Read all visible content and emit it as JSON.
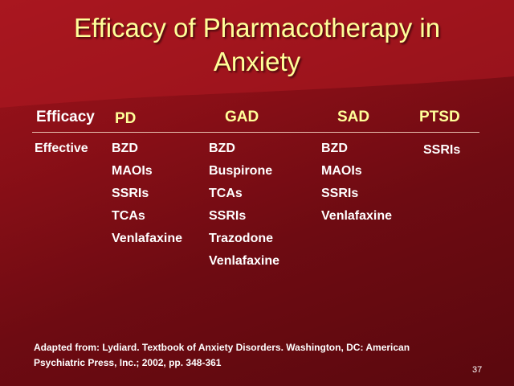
{
  "slide": {
    "title_line1": "Efficacy of Pharmacotherapy in",
    "title_line2": "Anxiety",
    "page_number": "37",
    "colors": {
      "background": "#8a0f17",
      "title": "#ffff99",
      "header": "#ffff99",
      "body_text": "#ffffff"
    }
  },
  "table": {
    "row_header_label": "Efficacy",
    "columns": [
      {
        "label": "PD",
        "items": [
          "BZD",
          "MAOIs",
          "SSRIs",
          "TCAs",
          "Venlafaxine"
        ]
      },
      {
        "label": "GAD",
        "items": [
          "BZD",
          "Buspirone",
          "TCAs",
          "SSRIs",
          "Trazodone",
          "Venlafaxine"
        ]
      },
      {
        "label": "SAD",
        "items": [
          "BZD",
          "MAOIs",
          "SSRIs",
          "Venlafaxine"
        ]
      },
      {
        "label": "PTSD",
        "items": [
          "SSRIs"
        ]
      }
    ],
    "row_label": "Effective"
  },
  "citation": {
    "line1": "Adapted from: Lydiard. Textbook of Anxiety Disorders. Washington, DC: American",
    "line2": "Psychiatric Press, Inc.; 2002, pp. 348-361"
  }
}
